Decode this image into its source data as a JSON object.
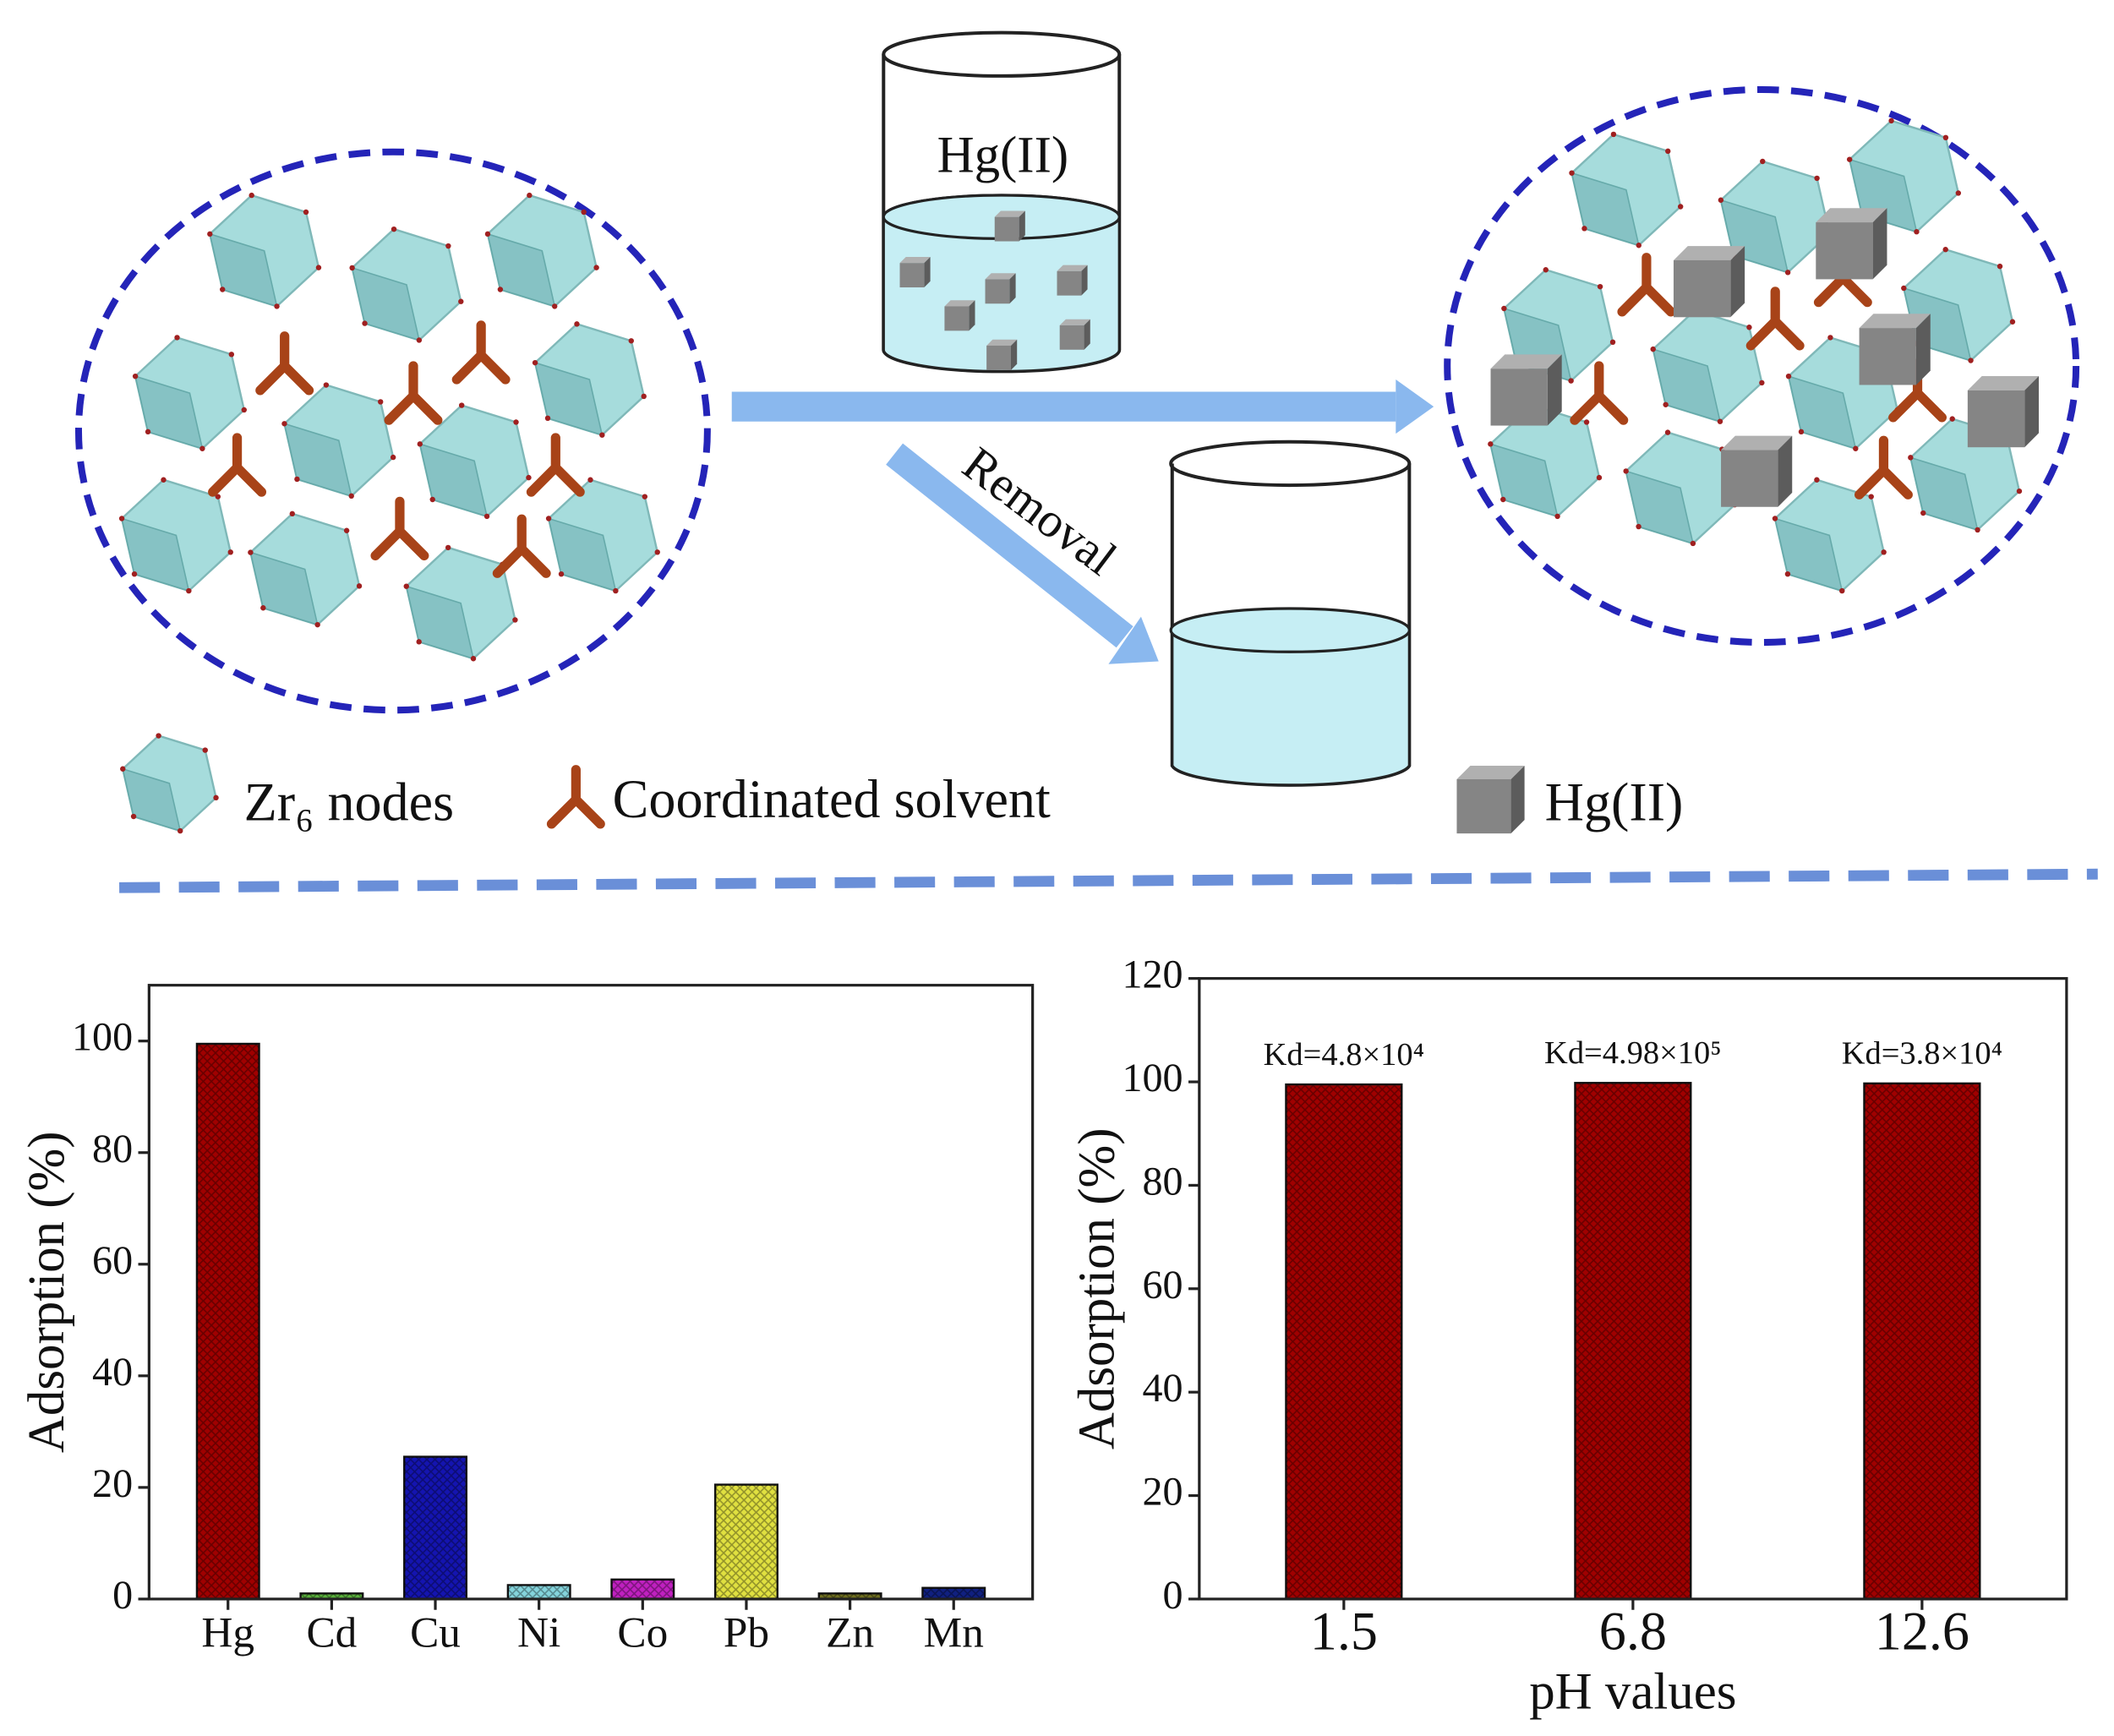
{
  "diagram": {
    "beaker_label": "Hg(II)",
    "arrow_label": "Removal",
    "legend": [
      "Zr₆ nodes",
      "Coordinated solvent",
      "Hg(II)"
    ]
  },
  "chart_data": [
    {
      "type": "bar",
      "ylabel": "Adsorption (%)",
      "categories": [
        "Hg",
        "Cd",
        "Cu",
        "Ni",
        "Co",
        "Pb",
        "Zn",
        "Mn"
      ],
      "values": [
        99.5,
        1,
        25.5,
        2.5,
        3.5,
        20.5,
        1,
        2
      ],
      "colors": [
        "#a00000",
        "#5ab23c",
        "#1414b0",
        "#84d4dc",
        "#c020c0",
        "#e0e040",
        "#707020",
        "#102080"
      ],
      "ylim": [
        0,
        110
      ],
      "yticks": [
        0,
        20,
        40,
        60,
        80,
        100
      ]
    },
    {
      "type": "bar",
      "ylabel": "Adsorption (%)",
      "xlabel": "pH values",
      "categories": [
        "1.5",
        "6.8",
        "12.6"
      ],
      "values": [
        99.5,
        99.8,
        99.7
      ],
      "colors": [
        "#a00000",
        "#a00000",
        "#a00000"
      ],
      "annotations": [
        "Kd=4.8×10⁴",
        "Kd=4.98×10⁵",
        "Kd=3.8×10⁴"
      ],
      "ylim": [
        0,
        120
      ],
      "yticks": [
        0,
        20,
        40,
        60,
        80,
        100,
        120
      ]
    }
  ]
}
